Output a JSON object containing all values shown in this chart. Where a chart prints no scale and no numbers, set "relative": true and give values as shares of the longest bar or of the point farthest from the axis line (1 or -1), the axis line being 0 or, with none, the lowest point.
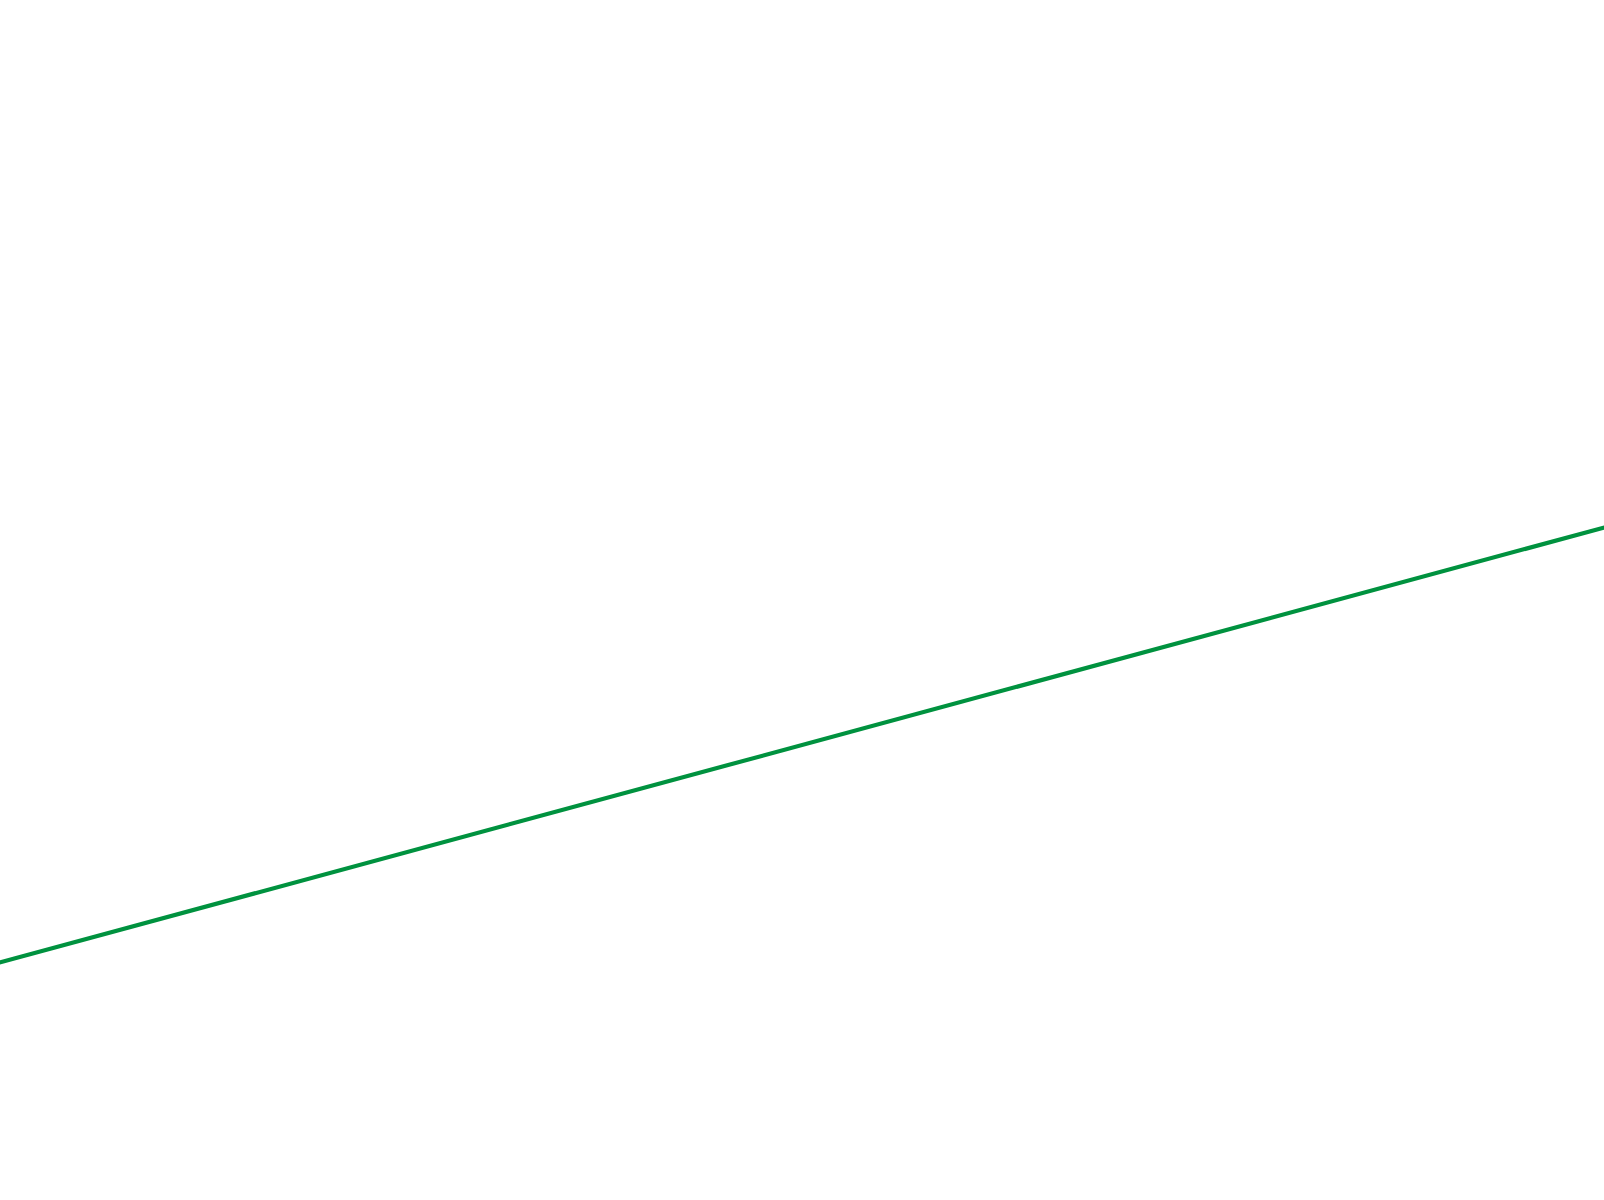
{
  "chart_data": {
    "type": "line",
    "relative": true,
    "categories": [
      null,
      null
    ],
    "series": [
      {
        "color": "#00923f",
        "values": [
          0,
          1
        ]
      }
    ],
    "legend": false,
    "marker": "none",
    "line_style": "solid"
  }
}
